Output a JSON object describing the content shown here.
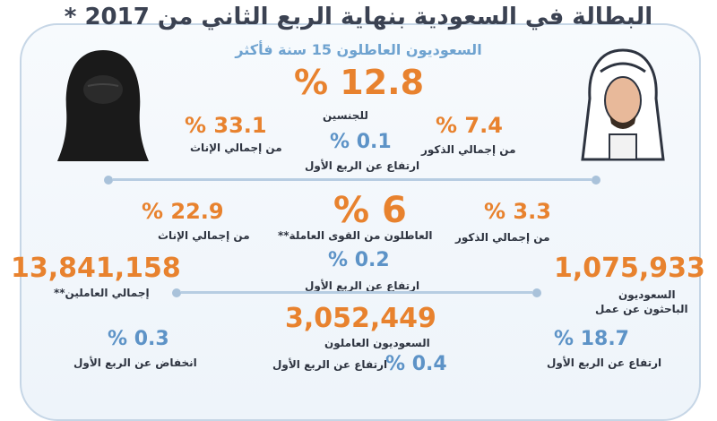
{
  "title": "البطالة في السعودية بنهاية الربع الثاني من 2017 *",
  "subtitle": "السعوديون العاطلون 15 سنة فأكثر",
  "row1": {
    "main_value": "% 12.8",
    "main_label": "للجنسين",
    "female_value": "% 33.1",
    "female_label": "من إجمالي الإناث",
    "male_value": "% 7.4",
    "male_label": "من إجمالي الذكور",
    "change_value": "% 0.1",
    "change_label": "ارتفاع عن الربع الأول"
  },
  "row2": {
    "main_value": "% 6",
    "main_label": "العاطلون من القوى العاملة**",
    "female_value": "% 22.9",
    "female_label": "من إجمالي الإناث",
    "male_value": "% 3.3",
    "male_label": "من إجمالي الذكور",
    "change_value": "% 0.2",
    "change_label": "ارتفاع عن الربع الأول"
  },
  "row3": {
    "total_value": "13,841,158",
    "total_label": "إجمالي العاملين**",
    "seekers_value": "1,075,933",
    "seekers_label_1": "السعوديون",
    "seekers_label_2": "الباحثون عن عمل",
    "saudi_workers_value": "3,052,449",
    "saudi_workers_label": "السعوديون العاملون"
  },
  "row4": {
    "left_value": "% 0.3",
    "left_label": "انخفاض عن الربع الأول",
    "mid_value": "% 0.4",
    "mid_label": "ارتفاع عن الربع الأول",
    "right_value": "% 18.7",
    "right_label": "ارتفاع عن الربع الأول"
  },
  "icons": {
    "female": "woman-niqab-icon",
    "male": "man-ghutra-icon"
  },
  "colors": {
    "orange": "#e8822e",
    "blue": "#5d93c7",
    "frame": "#c6d6e6",
    "dark": "#2e3440"
  }
}
